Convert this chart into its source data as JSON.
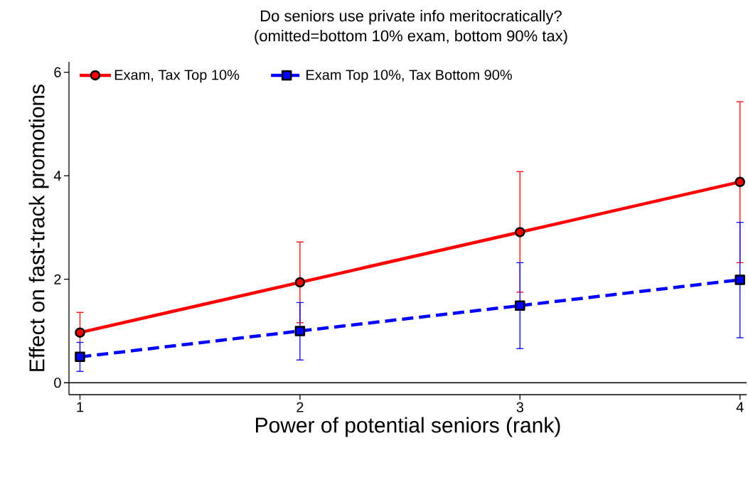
{
  "chart_data": {
    "type": "line",
    "title": "Do seniors use private info meritocratically?",
    "subtitle": "(omitted=bottom 10% exam, bottom 90% tax)",
    "xlabel": "Power of potential seniors (rank)",
    "ylabel": "Effect on fast-track promotions",
    "x": [
      1,
      2,
      3,
      4
    ],
    "series": [
      {
        "name": "Exam, Tax Top 10%",
        "color": "#ff0000",
        "marker": "circle",
        "line_style": "solid",
        "values": [
          0.97,
          1.94,
          2.91,
          3.88
        ],
        "errors": [
          [
            0.58,
            1.36
          ],
          [
            1.16,
            2.72
          ],
          [
            1.75,
            4.08
          ],
          [
            2.32,
            5.43
          ]
        ]
      },
      {
        "name": "Exam Top 10%, Tax Bottom 90%",
        "color": "#0000ff",
        "marker": "square",
        "line_style": "dashed",
        "values": [
          0.5,
          1.0,
          1.49,
          1.99
        ],
        "errors": [
          [
            0.22,
            0.78
          ],
          [
            0.44,
            1.55
          ],
          [
            0.66,
            2.32
          ],
          [
            0.87,
            3.1
          ]
        ]
      }
    ],
    "xlim": [
      0.95,
      4.03
    ],
    "ylim": [
      -0.23,
      6.2
    ],
    "xticks": [
      1,
      2,
      3,
      4
    ],
    "yticks": [
      0,
      2,
      4,
      6
    ],
    "ref_lines": [
      {
        "axis": "y",
        "value": 0,
        "color": "#000000"
      }
    ],
    "grid": false,
    "legend": "top"
  }
}
